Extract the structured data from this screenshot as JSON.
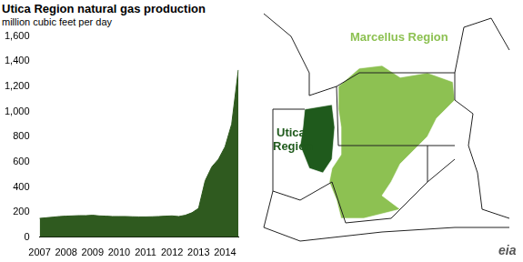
{
  "chart_data": {
    "type": "area",
    "title": "Utica Region natural gas production",
    "subtitle": "million cubic feet per day",
    "color": "#2f5a1f",
    "categories": [
      "2007",
      null,
      null,
      null,
      "2008",
      null,
      null,
      null,
      "2009",
      null,
      null,
      null,
      "2010",
      null,
      null,
      null,
      "2011",
      null,
      null,
      null,
      "2012",
      null,
      null,
      null,
      "2013",
      null,
      null,
      null,
      "2014",
      null,
      null
    ],
    "values": [
      150,
      155,
      160,
      165,
      168,
      170,
      172,
      172,
      175,
      170,
      168,
      165,
      165,
      165,
      163,
      162,
      162,
      163,
      165,
      168,
      170,
      165,
      175,
      195,
      230,
      450,
      560,
      620,
      720,
      900,
      1330
    ],
    "ylim": [
      0,
      1600
    ],
    "yticks": [
      0,
      200,
      400,
      600,
      800,
      {
        "value": 1000,
        "label": "1,000"
      },
      {
        "value": 1200,
        "label": "1,200"
      },
      {
        "value": 1400,
        "label": "1,400"
      },
      {
        "value": 1600,
        "label": "1,600"
      }
    ],
    "grid": false
  },
  "map": {
    "regions": [
      {
        "label": "Marcellus Region",
        "color": "#8dc152"
      },
      {
        "label": "Utica Region",
        "color": "#1f5a1c"
      }
    ]
  },
  "logo": "eia"
}
